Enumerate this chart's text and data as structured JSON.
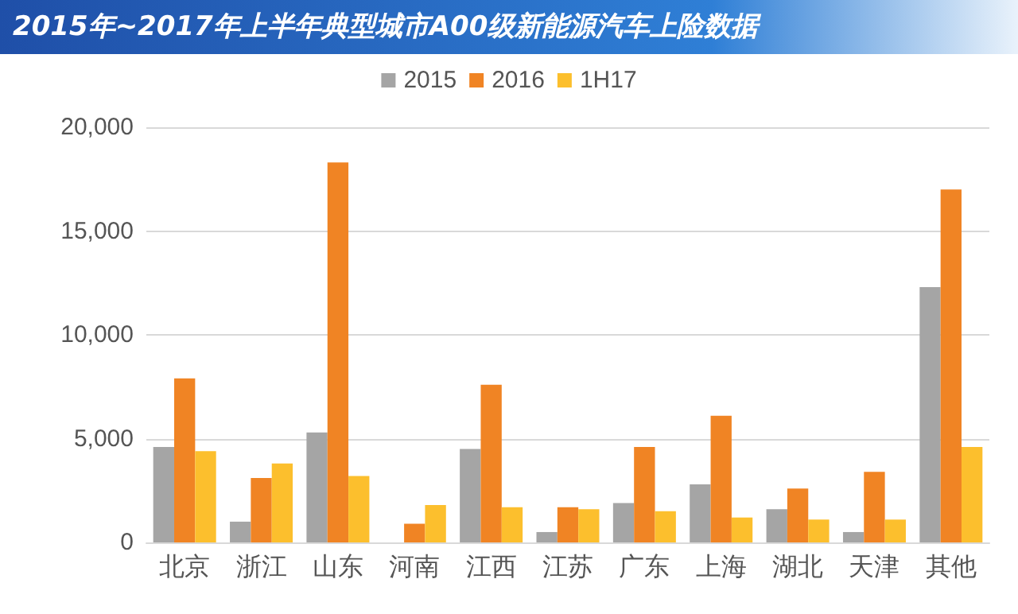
{
  "chart_data": {
    "type": "bar",
    "title": "2015年~2017年上半年典型城市A00级新能源汽车上险数据",
    "categories": [
      "北京",
      "浙江",
      "山东",
      "河南",
      "江西",
      "江苏",
      "广东",
      "上海",
      "湖北",
      "天津",
      "其他"
    ],
    "series": [
      {
        "name": "2015",
        "color": "#a5a5a5",
        "values": [
          4600,
          1000,
          5300,
          0,
          4500,
          500,
          1900,
          2800,
          1600,
          500,
          12300
        ]
      },
      {
        "name": "2016",
        "color": "#f08424",
        "values": [
          7900,
          3100,
          18300,
          900,
          7600,
          1700,
          4600,
          6100,
          2600,
          3400,
          17000
        ]
      },
      {
        "name": "1H17",
        "color": "#fcbf2d",
        "values": [
          4400,
          3800,
          3200,
          1800,
          1700,
          1600,
          1500,
          1200,
          1100,
          1100,
          4600
        ]
      }
    ],
    "ylim": [
      0,
      20000
    ],
    "yticks": [
      0,
      {
        "value": 5000,
        "label": "5,000"
      },
      {
        "value": 10000,
        "label": "10,000"
      },
      {
        "value": 15000,
        "label": "15,000"
      },
      {
        "value": 20000,
        "label": "20,000"
      }
    ],
    "grid": "y",
    "legend": "top"
  }
}
